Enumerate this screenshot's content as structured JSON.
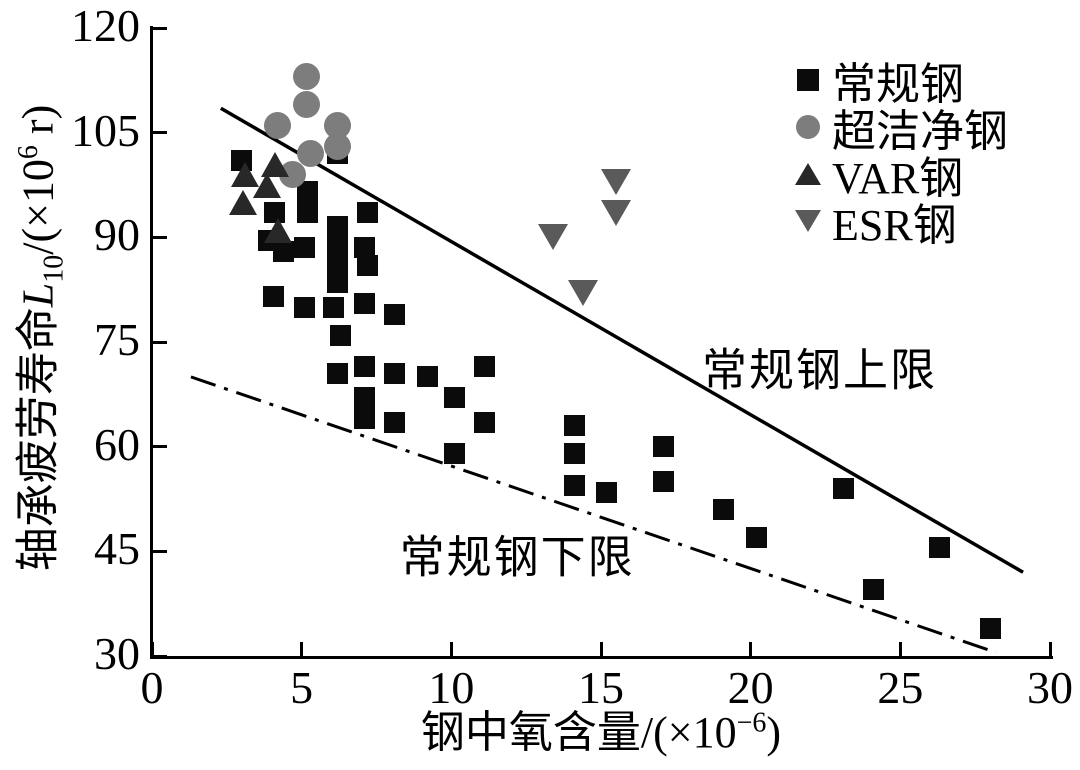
{
  "figure": {
    "background": "#ffffff",
    "ink": "#000000"
  },
  "chart_data": {
    "type": "scatter",
    "title": "",
    "xlabel": {
      "prefix": "钢中氧含量/(×10",
      "sup": "−6",
      "close": ")"
    },
    "ylabel": {
      "prefix": "轴承疲劳寿命",
      "symbol": "L",
      "symbol_sub": "10",
      "unit_open": "/(×10",
      "unit_sup": "6",
      "unit_close": " r)"
    },
    "xlim": [
      0,
      30
    ],
    "ylim": [
      30,
      120
    ],
    "x_ticks": [
      0,
      5,
      10,
      15,
      20,
      25,
      30
    ],
    "y_ticks": [
      30,
      45,
      60,
      75,
      90,
      105,
      120
    ],
    "grid": false,
    "legend_position": "top-right",
    "series": [
      {
        "id": "conventional-steel",
        "name": "常规钢",
        "marker": "square",
        "color": "#0b0b0b",
        "points": [
          [
            3.0,
            101
          ],
          [
            4.1,
            93.5
          ],
          [
            3.9,
            89.5
          ],
          [
            4.4,
            88
          ],
          [
            5.2,
            96.5
          ],
          [
            5.2,
            93.5
          ],
          [
            5.1,
            88.5
          ],
          [
            4.05,
            81.5
          ],
          [
            5.1,
            80
          ],
          [
            6.2,
            102
          ],
          [
            6.2,
            91.5
          ],
          [
            6.2,
            89
          ],
          [
            6.2,
            86.5
          ],
          [
            6.2,
            83.5
          ],
          [
            7.2,
            93.5
          ],
          [
            7.1,
            88.5
          ],
          [
            7.2,
            86
          ],
          [
            6.05,
            80
          ],
          [
            7.1,
            80.5
          ],
          [
            8.1,
            79
          ],
          [
            6.3,
            76
          ],
          [
            6.2,
            70.5
          ],
          [
            7.1,
            71.5
          ],
          [
            8.1,
            70.5
          ],
          [
            9.2,
            70
          ],
          [
            11.1,
            71.5
          ],
          [
            10.1,
            67
          ],
          [
            7.1,
            67
          ],
          [
            7.1,
            64
          ],
          [
            8.1,
            63.5
          ],
          [
            11.1,
            63.5
          ],
          [
            10.1,
            59
          ],
          [
            14.1,
            63
          ],
          [
            14.1,
            59
          ],
          [
            14.1,
            54.5
          ],
          [
            15.2,
            53.5
          ],
          [
            17.1,
            60
          ],
          [
            17.1,
            55
          ],
          [
            19.1,
            51
          ],
          [
            20.2,
            47
          ],
          [
            23.1,
            54
          ],
          [
            26.3,
            45.5
          ],
          [
            24.1,
            39.5
          ],
          [
            28.0,
            34
          ]
        ]
      },
      {
        "id": "ultra-clean-steel",
        "name": "超洁净钢",
        "marker": "circle",
        "color": "#7d7d7d",
        "points": [
          [
            5.15,
            113
          ],
          [
            5.15,
            109
          ],
          [
            4.2,
            106
          ],
          [
            6.2,
            106
          ],
          [
            6.2,
            103
          ],
          [
            5.3,
            102
          ],
          [
            4.7,
            99
          ]
        ]
      },
      {
        "id": "var-steel",
        "name": "VAR钢",
        "marker": "triangle-up",
        "color": "#282828",
        "points": [
          [
            3.1,
            99
          ],
          [
            4.1,
            100.5
          ],
          [
            3.85,
            97.5
          ],
          [
            3.05,
            95
          ],
          [
            4.2,
            91
          ]
        ]
      },
      {
        "id": "esr-steel",
        "name": "ESR钢",
        "marker": "triangle-down",
        "color": "#5a5a5a",
        "points": [
          [
            15.5,
            98
          ],
          [
            15.5,
            93.5
          ],
          [
            13.4,
            90
          ],
          [
            14.4,
            82
          ]
        ]
      }
    ],
    "lines": [
      {
        "id": "upper-limit-line",
        "label": "常规钢上限",
        "style": "solid",
        "color": "#000000",
        "width": 3.5,
        "from": [
          2.3,
          108.5
        ],
        "to": [
          29.1,
          42
        ],
        "label_at": [
          22.3,
          71.6
        ]
      },
      {
        "id": "lower-limit-line",
        "label": "常规钢下限",
        "style": "dash-dot",
        "color": "#000000",
        "width": 3,
        "from": [
          1.3,
          70
        ],
        "to": [
          28.2,
          30.5
        ],
        "label_at": [
          12.2,
          44.8
        ]
      }
    ]
  }
}
